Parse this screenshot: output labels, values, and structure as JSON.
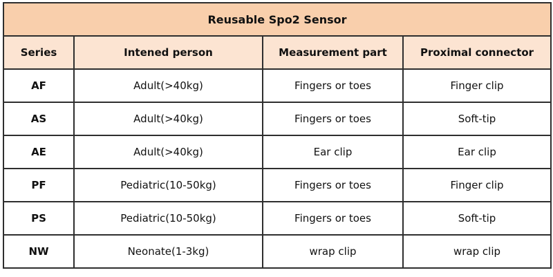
{
  "title": "Reusable Spo2 Sensor",
  "headers": [
    "Series",
    "Intened person",
    "Measurement part",
    "Proximal connector"
  ],
  "rows": [
    [
      "AF",
      "Adult(>40kg)",
      "Fingers or toes",
      "Finger clip"
    ],
    [
      "AS",
      "Adult(>40kg)",
      "Fingers or toes",
      "Soft-tip"
    ],
    [
      "AE",
      "Adult(>40kg)",
      "Ear clip",
      "Ear clip"
    ],
    [
      "PF",
      "Pediatric(10-50kg)",
      "Fingers or toes",
      "Finger clip"
    ],
    [
      "PS",
      "Pediatric(10-50kg)",
      "Fingers or toes",
      "Soft-tip"
    ],
    [
      "NW",
      "Neonate(1-3kg)",
      "wrap clip",
      "wrap clip"
    ]
  ],
  "colors": {
    "title_bg": "#f9cfac",
    "header_bg": "#fce4d2",
    "border": "#2e2e2e"
  }
}
